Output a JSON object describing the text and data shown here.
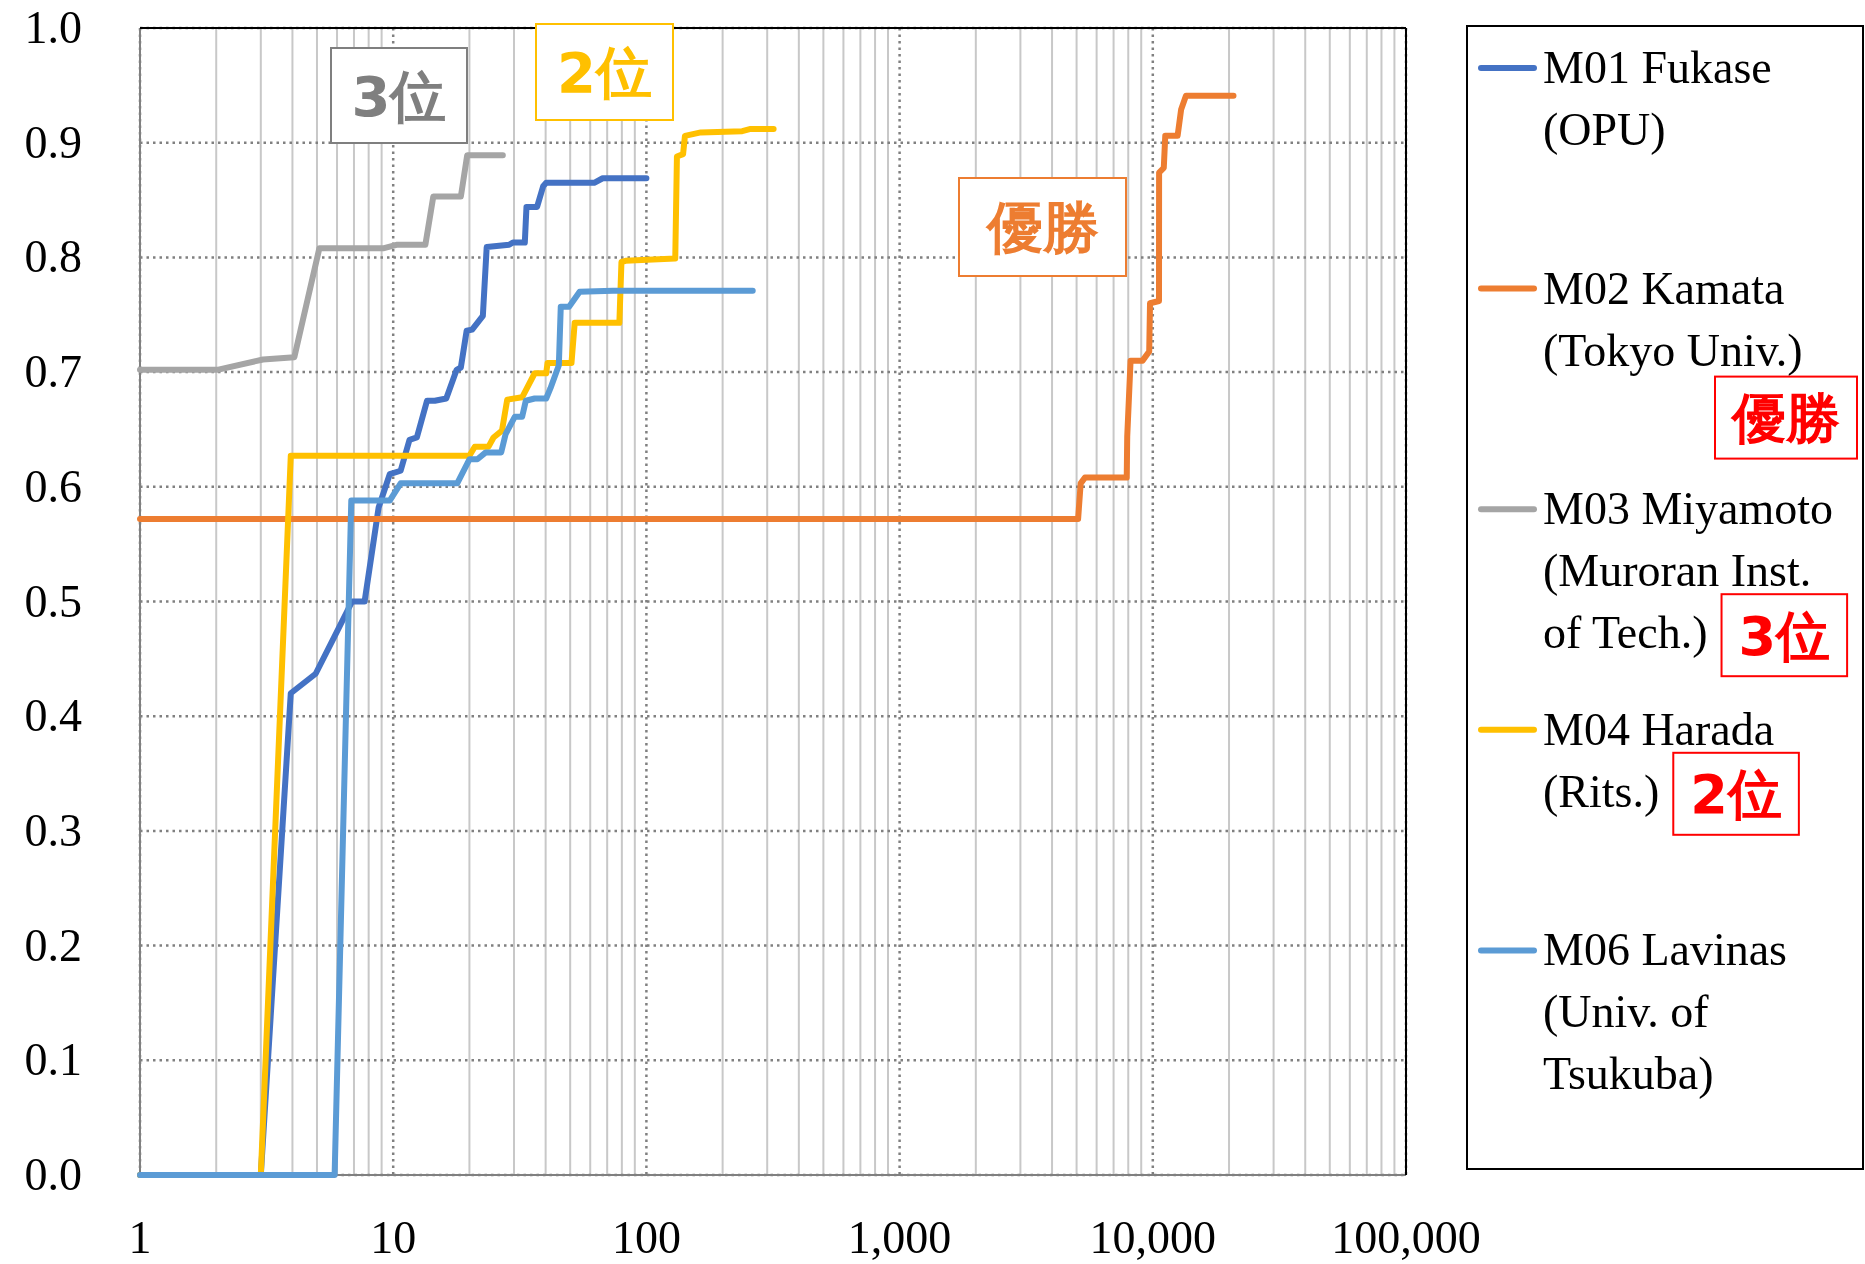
{
  "chart_data": {
    "type": "line",
    "log": "x",
    "grid": true,
    "legend": "right",
    "xlim": [
      1,
      100000
    ],
    "xticks": [
      1,
      10,
      100,
      {
        "value": 1000,
        "label": "1,000"
      },
      {
        "value": 10000,
        "label": "10,000"
      },
      {
        "value": 100000,
        "label": "100,000"
      }
    ],
    "ylim": [
      0,
      1
    ],
    "yticks": [
      {
        "value": 0,
        "label": "0.0"
      },
      {
        "value": 0.1,
        "label": "0.1"
      },
      {
        "value": 0.2,
        "label": "0.2"
      },
      {
        "value": 0.3,
        "label": "0.3"
      },
      {
        "value": 0.4,
        "label": "0.4"
      },
      {
        "value": 0.5,
        "label": "0.5"
      },
      {
        "value": 0.6,
        "label": "0.6"
      },
      {
        "value": 0.7,
        "label": "0.7"
      },
      {
        "value": 0.8,
        "label": "0.8"
      },
      {
        "value": 0.9,
        "label": "0.9"
      },
      {
        "value": 1,
        "label": "1.0"
      }
    ],
    "annotations": [
      "3位",
      "2位",
      "優勝",
      "優勝",
      "3位",
      "2位"
    ],
    "series": [
      {
        "name": "M01 Fukase (OPU)",
        "color": "#4472c4",
        "x": [
          1,
          3.0,
          3.94,
          4.94,
          5.82,
          6.88,
          7.71,
          8.76,
          9.69,
          10.7,
          11.6,
          12.4,
          13.6,
          14.6,
          16.2,
          17.8,
          18.5,
          19.5,
          20.5,
          22.6,
          23.4,
          28.7,
          29.7,
          33.1,
          33.6,
          37.0,
          39.1,
          40.2,
          62.2,
          67.2,
          100
        ],
        "values": [
          0,
          0,
          0.42,
          0.437,
          0.468,
          0.5,
          0.5,
          0.582,
          0.611,
          0.614,
          0.641,
          0.643,
          0.675,
          0.675,
          0.677,
          0.702,
          0.704,
          0.736,
          0.737,
          0.749,
          0.809,
          0.811,
          0.813,
          0.813,
          0.844,
          0.844,
          0.862,
          0.865,
          0.865,
          0.869,
          0.869
        ]
      },
      {
        "name": "M02 Kamata (Tokyo Univ.)",
        "color": "#ed7d31",
        "x": [
          1,
          5070,
          5190,
          5395,
          7890,
          7925,
          8170,
          9110,
          9680,
          9750,
          10580,
          10590,
          11050,
          11200,
          12530,
          12940,
          13520,
          20830
        ],
        "values": [
          0.572,
          0.572,
          0.603,
          0.608,
          0.608,
          0.644,
          0.71,
          0.71,
          0.718,
          0.76,
          0.762,
          0.874,
          0.878,
          0.906,
          0.906,
          0.929,
          0.941,
          0.941
        ]
      },
      {
        "name": "M03 Miyamoto (Muroran Inst. of Tech.)",
        "color": "#a5a5a5",
        "x": [
          1,
          2.02,
          3.06,
          4.07,
          5.11,
          9.2,
          10.3,
          13.4,
          14.4,
          18.5,
          19.6,
          27.1
        ],
        "values": [
          0.702,
          0.702,
          0.711,
          0.713,
          0.808,
          0.808,
          0.811,
          0.811,
          0.853,
          0.853,
          0.889,
          0.889
        ]
      },
      {
        "name": "M04 Harada (Rits.)",
        "color": "#ffc000",
        "x": [
          1,
          3.0,
          3.94,
          20.0,
          21.0,
          23.8,
          24.9,
          26.9,
          28.2,
          32.3,
          36.2,
          40.2,
          40.7,
          50.6,
          52.1,
          78.2,
          79.7,
          82.7,
          130,
          132,
          139.6,
          142,
          164,
          239,
          258,
          318
        ],
        "values": [
          0,
          0,
          0.627,
          0.627,
          0.635,
          0.635,
          0.643,
          0.649,
          0.676,
          0.678,
          0.699,
          0.699,
          0.708,
          0.708,
          0.743,
          0.743,
          0.796,
          0.797,
          0.799,
          0.888,
          0.89,
          0.906,
          0.909,
          0.91,
          0.912,
          0.912
        ]
      },
      {
        "name": "M06 Lavinas (Univ. of Tsukuba)",
        "color": "#5b9bd5",
        "x": [
          1,
          5.87,
          6.83,
          9.69,
          10.7,
          17.9,
          20.0,
          21.5,
          23.2,
          26.7,
          27.8,
          30.2,
          32.3,
          33.4,
          36.2,
          40.2,
          41.8,
          45.1,
          45.9,
          49.5,
          54.5,
          73.8,
          263
        ],
        "values": [
          0,
          0,
          0.588,
          0.588,
          0.603,
          0.603,
          0.624,
          0.624,
          0.63,
          0.63,
          0.646,
          0.661,
          0.661,
          0.675,
          0.677,
          0.677,
          0.686,
          0.706,
          0.757,
          0.757,
          0.77,
          0.771,
          0.771
        ]
      }
    ]
  }
}
